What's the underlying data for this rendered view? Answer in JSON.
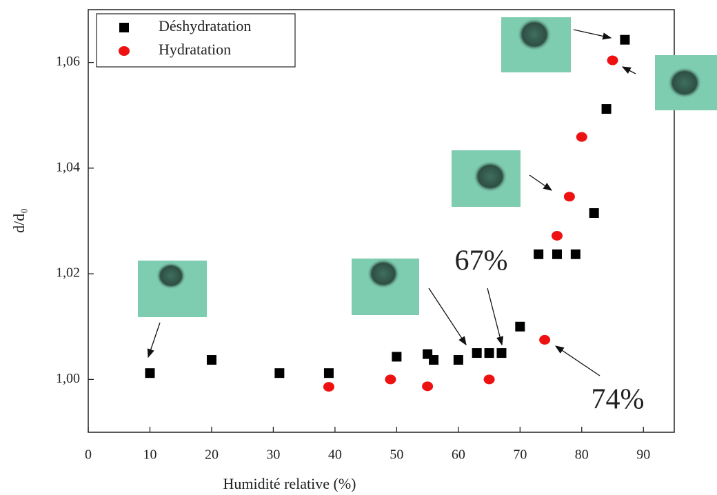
{
  "chart_data": {
    "type": "scatter",
    "xlabel": "Humidité relative (%)",
    "ylabel": "d/d₀",
    "xlim": [
      0,
      95
    ],
    "ylim": [
      0.99,
      1.07
    ],
    "xticks": [
      0,
      10,
      20,
      30,
      40,
      50,
      60,
      70,
      80,
      90
    ],
    "yticks": [
      {
        "value": 1.0,
        "label": "1,00"
      },
      {
        "value": 1.02,
        "label": "1,02"
      },
      {
        "value": 1.04,
        "label": "1,04"
      },
      {
        "value": 1.06,
        "label": "1,06"
      }
    ],
    "legend": "upper left",
    "series": [
      {
        "name": "Déshydratation",
        "color": "#000000",
        "marker": "square",
        "x": [
          10,
          20,
          31,
          39,
          50,
          55,
          56,
          60,
          63,
          65,
          67,
          70,
          73,
          76,
          79,
          82,
          84,
          87
        ],
        "values": [
          1.0012,
          1.0037,
          1.0012,
          1.0012,
          1.0043,
          1.0048,
          1.0037,
          1.0037,
          1.005,
          1.005,
          1.005,
          1.01,
          1.0237,
          1.0237,
          1.0237,
          1.0315,
          1.0512,
          1.0643
        ]
      },
      {
        "name": "Hydratation",
        "color": "#ee1111",
        "marker": "circle",
        "x": [
          39,
          49,
          55,
          65,
          74,
          76,
          78,
          80,
          85
        ],
        "values": [
          0.9986,
          1.0,
          0.9987,
          1.0,
          1.0075,
          1.0272,
          1.0346,
          1.0459,
          1.0604
        ]
      }
    ],
    "annotations": [
      "67%",
      "74%"
    ]
  }
}
